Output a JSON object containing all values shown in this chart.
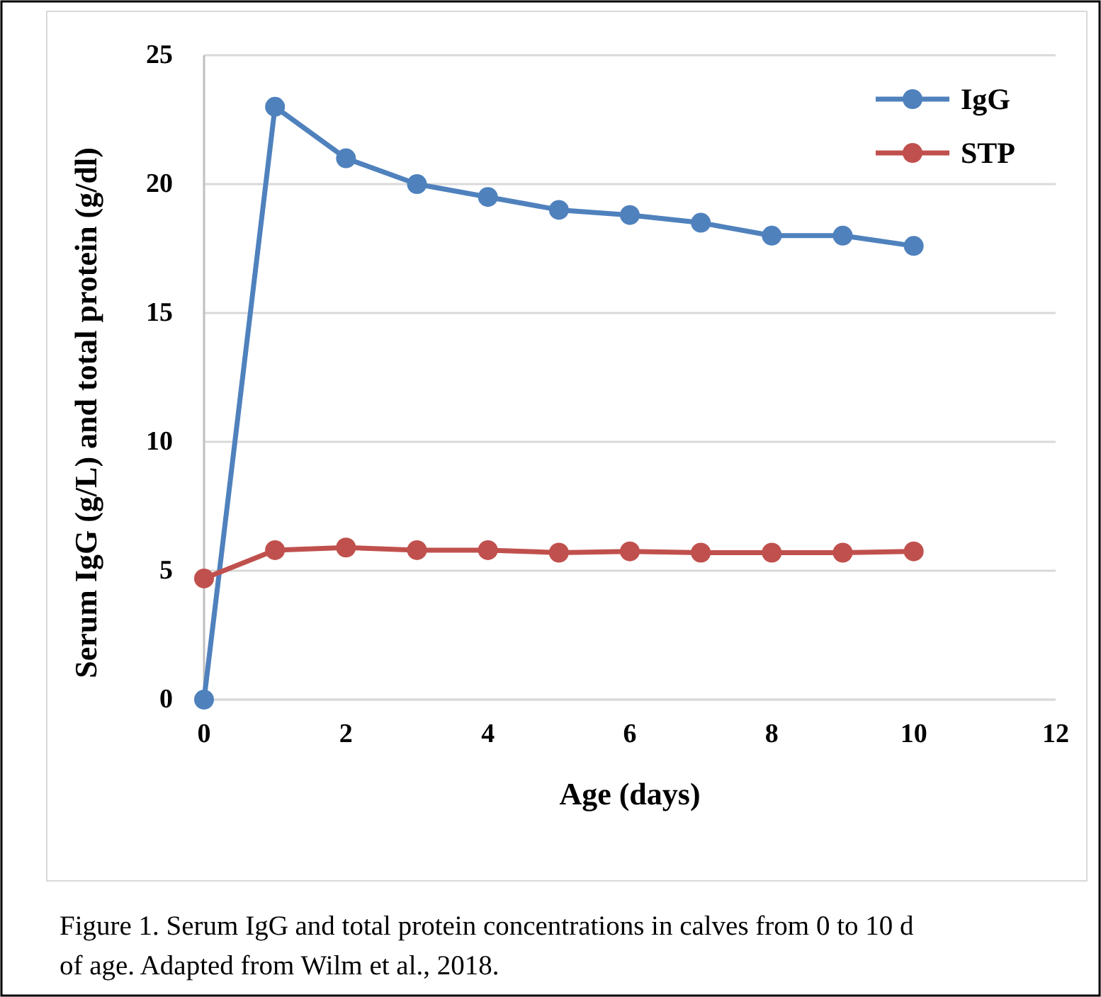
{
  "chart_data": {
    "type": "line",
    "xlabel": "Age (days)",
    "ylabel": "Serum IgG (g/L) and total protein (g/dl)",
    "x": [
      0,
      1,
      2,
      3,
      4,
      5,
      6,
      7,
      8,
      9,
      10
    ],
    "series": [
      {
        "name": "IgG",
        "color": "#4f81bd",
        "values": [
          0,
          23,
          21,
          20,
          19.5,
          19,
          18.8,
          18.5,
          18,
          18,
          17.6
        ]
      },
      {
        "name": "STP",
        "color": "#c0504d",
        "values": [
          4.7,
          5.8,
          5.9,
          5.8,
          5.8,
          5.7,
          5.75,
          5.7,
          5.7,
          5.7,
          5.75
        ]
      }
    ],
    "xlim": [
      0,
      12
    ],
    "xticks": [
      0,
      2,
      4,
      6,
      8,
      10,
      12
    ],
    "ylim": [
      0,
      25
    ],
    "yticks": [
      0,
      5,
      10,
      15,
      20,
      25
    ],
    "grid": "y",
    "legend": "top right",
    "marker": "circle",
    "line_style": "solid",
    "annotations": [
      "Figure 1. Serum IgG and total protein concentrations in calves from 0 to 10 d of age.  Adapted from Wilm et al., 2018."
    ]
  }
}
